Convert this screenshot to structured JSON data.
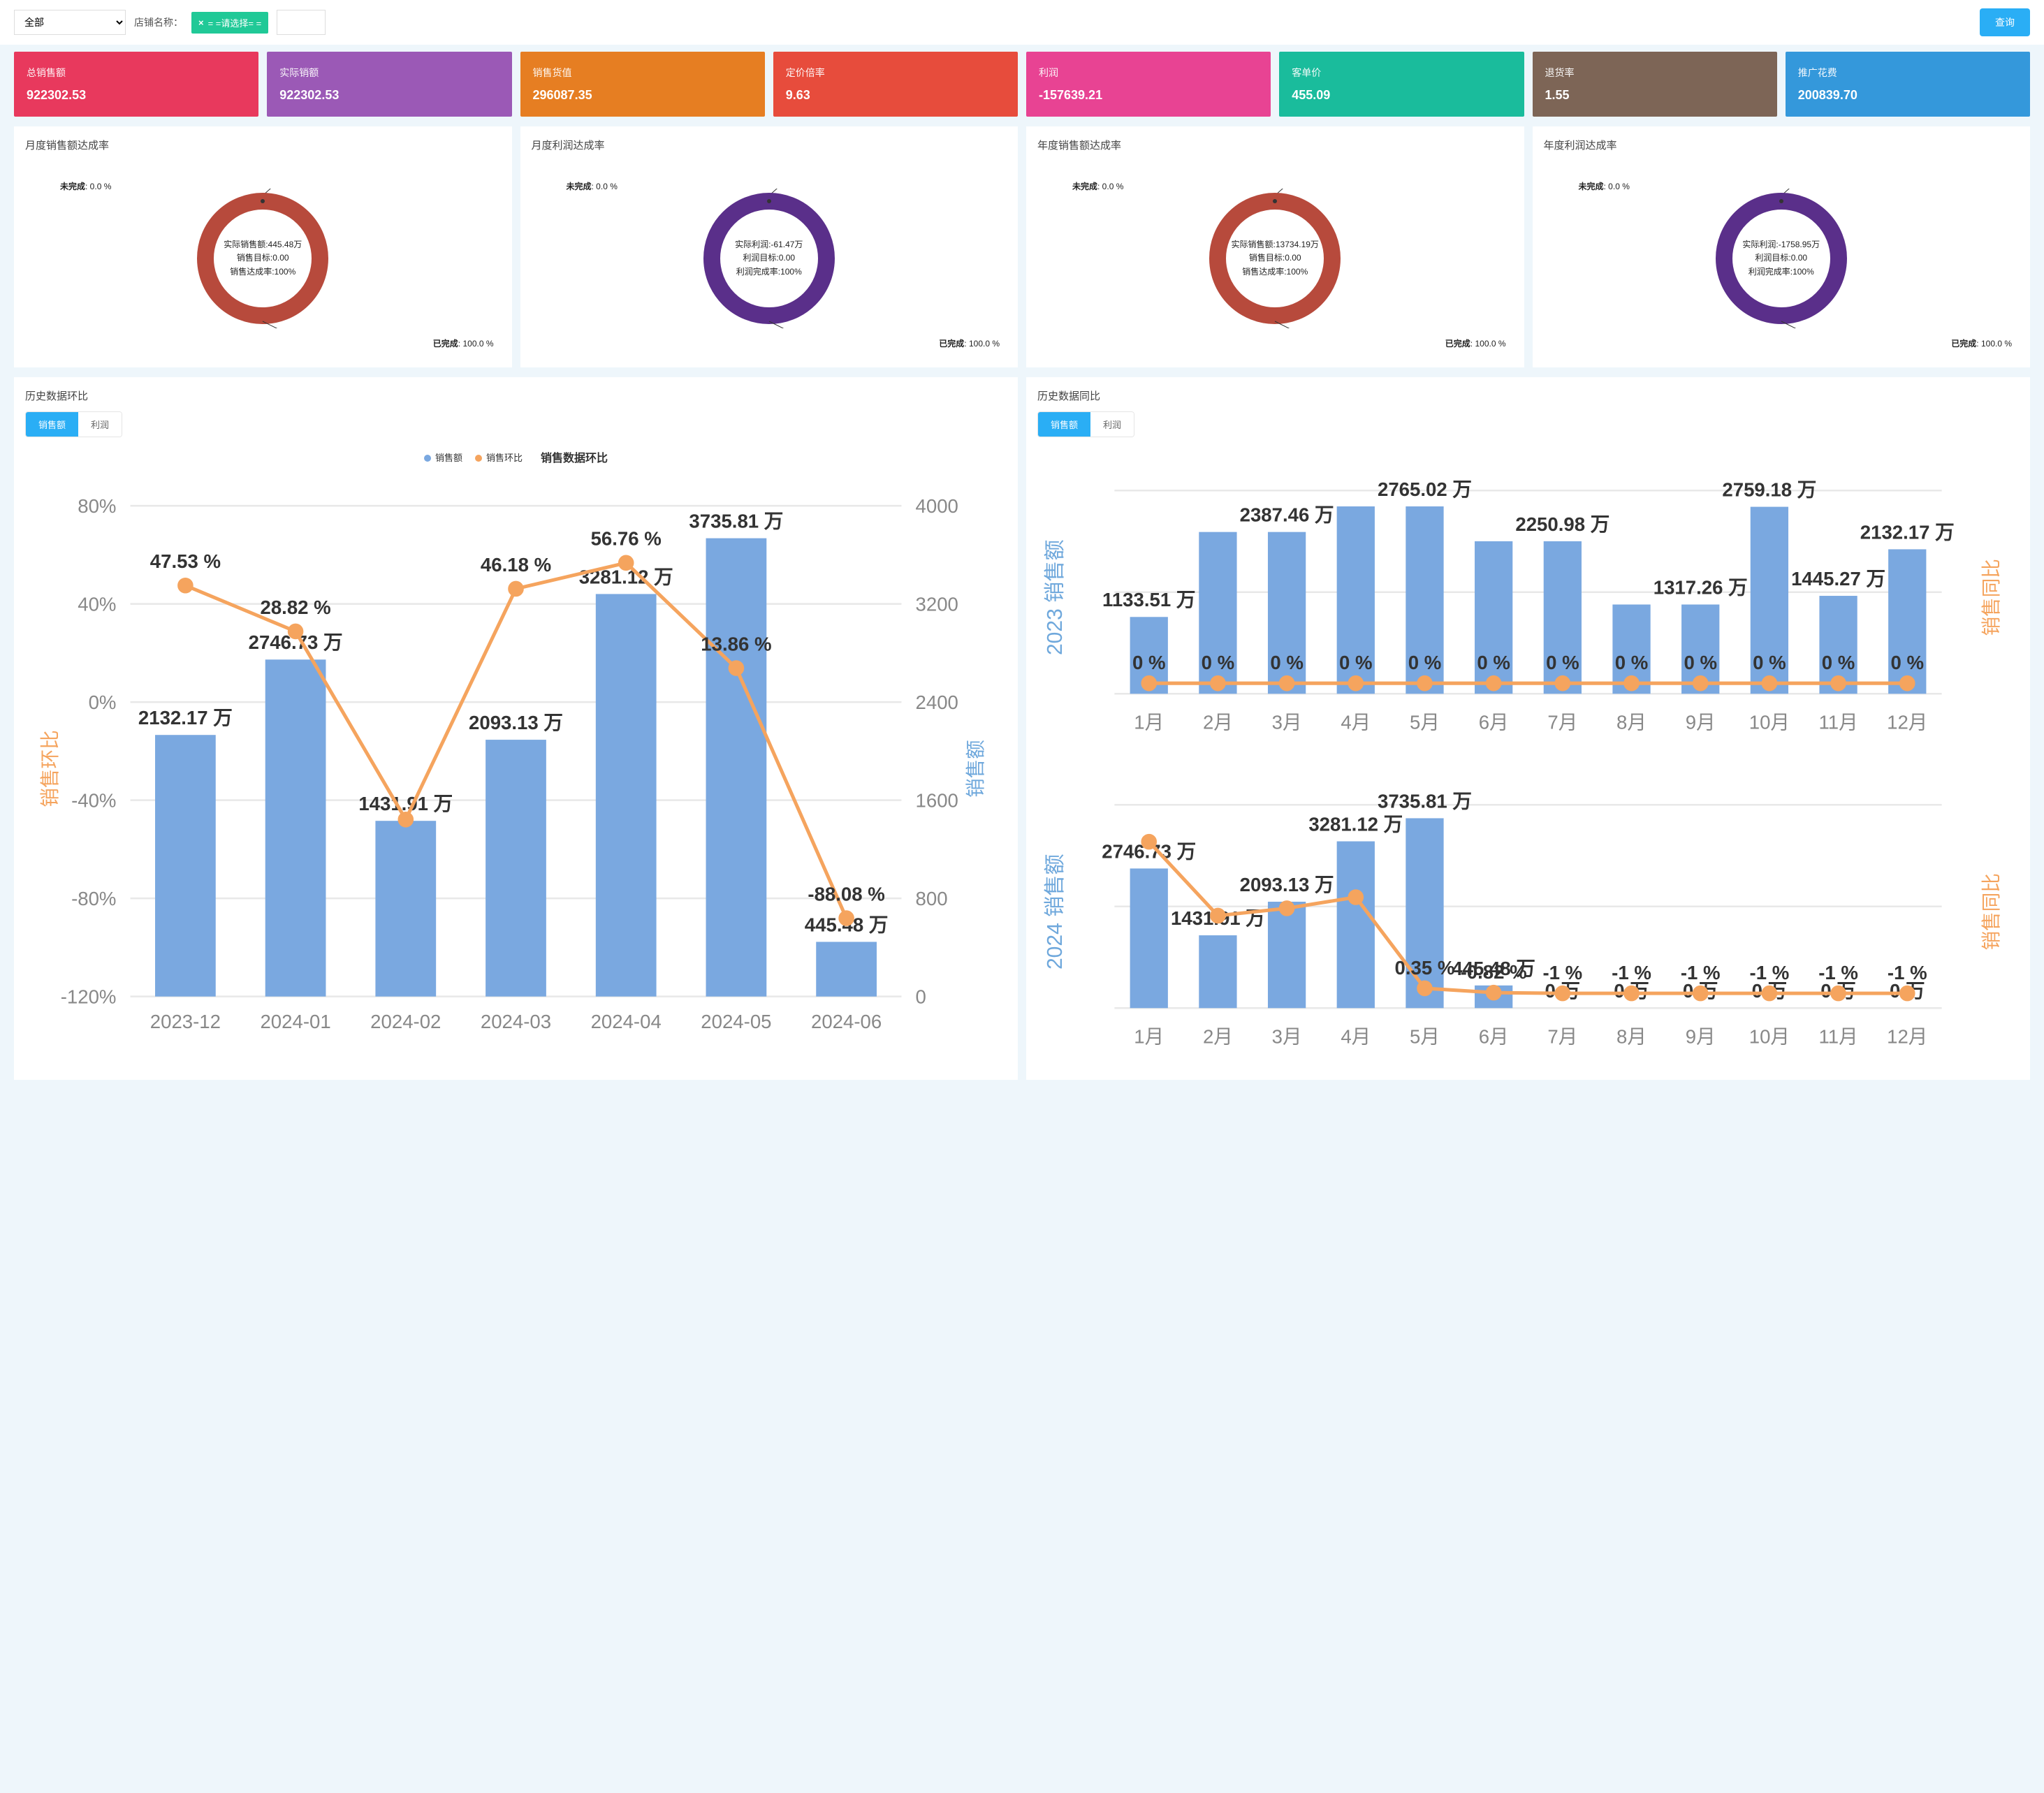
{
  "filter": {
    "dropdown_value": "全部",
    "store_label": "店铺名称：",
    "tag_text": "= =请选择= =",
    "query_btn": "查询"
  },
  "kpi": [
    {
      "label": "总销售额",
      "value": "922302.53",
      "bg": "#e8395d"
    },
    {
      "label": "实际销额",
      "value": "922302.53",
      "bg": "#9b59b6"
    },
    {
      "label": "销售货值",
      "value": "296087.35",
      "bg": "#e67e22"
    },
    {
      "label": "定价倍率",
      "value": "9.63",
      "bg": "#e74c3c"
    },
    {
      "label": "利润",
      "value": "-157639.21",
      "bg": "#e84393"
    },
    {
      "label": "客单价",
      "value": "455.09",
      "bg": "#1abc9c"
    },
    {
      "label": "退货率",
      "value": "1.55",
      "bg": "#7d6556"
    },
    {
      "label": "推广花费",
      "value": "200839.70",
      "bg": "#3498db"
    }
  ],
  "donuts": [
    {
      "title": "月度销售额达成率",
      "ring_color": "#b74a3c",
      "top_label": "未完成",
      "top_value": "0.0 %",
      "bottom_label": "已完成",
      "bottom_value": "100.0 %",
      "center_lines": [
        "实际销售额:445.48万",
        "销售目标:0.00",
        "销售达成率:100%"
      ]
    },
    {
      "title": "月度利润达成率",
      "ring_color": "#5a2f8a",
      "top_label": "未完成",
      "top_value": "0.0 %",
      "bottom_label": "已完成",
      "bottom_value": "100.0 %",
      "center_lines": [
        "实际利润:-61.47万",
        "利润目标:0.00",
        "利润完成率:100%"
      ]
    },
    {
      "title": "年度销售额达成率",
      "ring_color": "#b74a3c",
      "top_label": "未完成",
      "top_value": "0.0 %",
      "bottom_label": "已完成",
      "bottom_value": "100.0 %",
      "center_lines": [
        "实际销售额:13734.19万",
        "销售目标:0.00",
        "销售达成率:100%"
      ]
    },
    {
      "title": "年度利润达成率",
      "ring_color": "#5a2f8a",
      "top_label": "未完成",
      "top_value": "0.0 %",
      "bottom_label": "已完成",
      "bottom_value": "100.0 %",
      "center_lines": [
        "实际利润:-1758.95万",
        "利润目标:0.00",
        "利润完成率:100%"
      ]
    }
  ],
  "history_ring": {
    "title": "历史数据环比",
    "tabs": [
      "销售额",
      "利润"
    ],
    "active_tab": 0,
    "legend_bar": "销售额",
    "legend_line": "销售环比",
    "chart_title": "销售数据环比",
    "bar_color": "#7aa8e0",
    "line_color": "#f5a45e",
    "left_axis_title": "销售环比",
    "right_axis_title": "销售额",
    "left_ticks": [
      "80%",
      "40%",
      "0%",
      "-40%",
      "-80%",
      "-120%"
    ],
    "right_ticks": [
      "4000",
      "3200",
      "2400",
      "1600",
      "800",
      "0"
    ],
    "categories": [
      "2023-12",
      "2024-01",
      "2024-02",
      "2024-03",
      "2024-04",
      "2024-05",
      "2024-06"
    ],
    "bars": [
      2132.17,
      2746.73,
      1431.91,
      2093.13,
      3281.12,
      3735.81,
      445.48
    ],
    "bar_labels": [
      "2132.17 万",
      "2746.73 万",
      "1431.91 万",
      "2093.13 万",
      "3281.12 万",
      "3735.81 万",
      "445.48 万"
    ],
    "line": [
      47.53,
      28.82,
      -47.86,
      46.18,
      56.76,
      13.86,
      -88.08
    ],
    "line_labels": [
      "47.53 %",
      "28.82 %",
      "",
      "46.18 %",
      "56.76 %",
      "13.86 %",
      "-88.08 %"
    ],
    "bar_max": 4000,
    "line_min": -120,
    "line_max": 80
  },
  "history_yoy": {
    "title": "历史数据同比",
    "tabs": [
      "销售额",
      "利润"
    ],
    "active_tab": 0,
    "bar_color": "#7aa8e0",
    "line_color": "#f5a45e",
    "categories": [
      "1月",
      "2月",
      "3月",
      "4月",
      "5月",
      "6月",
      "7月",
      "8月",
      "9月",
      "10月",
      "11月",
      "12月"
    ],
    "top": {
      "year_label": "2023 销售额",
      "right_label": "销售同比",
      "bars": [
        1133.51,
        2387.46,
        2387.46,
        2765.02,
        2765.02,
        2250.98,
        2250.98,
        1317.26,
        1317.26,
        2759.18,
        1445.27,
        2132.17
      ],
      "bar_labels": [
        "1133.51 万",
        "",
        "2387.46 万",
        "",
        "2765.02 万",
        "",
        "2250.98 万",
        "",
        "1317.26 万",
        "2759.18 万",
        "1445.27 万",
        "2132.17 万"
      ],
      "line_labels": [
        "0 %",
        "0 %",
        "0 %",
        "0 %",
        "0 %",
        "0 %",
        "0 %",
        "0 %",
        "0 %",
        "0 %",
        "0 %",
        "0 %"
      ],
      "bar_max": 3000
    },
    "bottom": {
      "year_label": "2024 销售额",
      "right_label": "销售同比",
      "bars": [
        2746.73,
        1431.91,
        2093.13,
        3281.12,
        3735.81,
        445.48,
        0,
        0,
        0,
        0,
        0,
        0
      ],
      "bar_labels": [
        "2746.73 万",
        "1431.91 万",
        "2093.13 万",
        "3281.12 万",
        "3735.81 万",
        "445.48 万",
        "0 万",
        "0 万",
        "0 万",
        "0 万",
        "0 万",
        "0 万"
      ],
      "line_vals": [
        40,
        20,
        22,
        25,
        0.35,
        -0.82,
        -1,
        -1,
        -1,
        -1,
        -1,
        -1
      ],
      "line_labels": [
        "",
        "",
        "",
        "",
        "0.35 %",
        "-0.82 %",
        "-1 %",
        "-1 %",
        "-1 %",
        "-1 %",
        "-1 %",
        "-1 %"
      ],
      "bar_max": 4000
    }
  }
}
